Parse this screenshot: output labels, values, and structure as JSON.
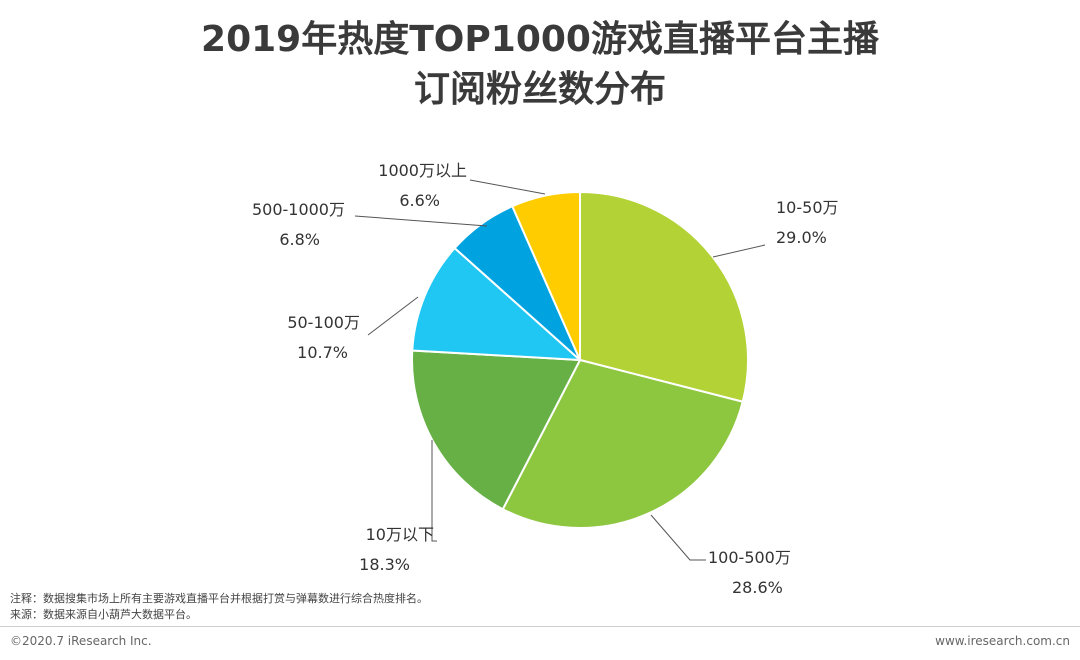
{
  "header": {
    "title_line1": "2019年热度TOP1000游戏直播平台主播",
    "title_line2": "订阅粉丝数分布"
  },
  "chart_data": {
    "type": "pie",
    "title": "2019年热度TOP1000游戏直播平台主播订阅粉丝数分布",
    "start_angle_deg": 0,
    "direction": "clockwise",
    "slices": [
      {
        "label": "10-50万",
        "value": 29.0,
        "display": "29.0%",
        "color": "#b2d235"
      },
      {
        "label": "100-500万",
        "value": 28.6,
        "display": "28.6%",
        "color": "#8dc63f"
      },
      {
        "label": "10万以下",
        "value": 18.3,
        "display": "18.3%",
        "color": "#66b046"
      },
      {
        "label": "50-100万",
        "value": 10.7,
        "display": "10.7%",
        "color": "#1fc7f2"
      },
      {
        "label": "500-1000万",
        "value": 6.8,
        "display": "6.8%",
        "color": "#00a3e0"
      },
      {
        "label": "1000万以上",
        "value": 6.6,
        "display": "6.6%",
        "color": "#ffcc00"
      }
    ]
  },
  "footer": {
    "note": "注释：数据搜集市场上所有主要游戏直播平台并根据打赏与弹幕数进行综合热度排名。",
    "source": "来源：数据来源自小葫芦大数据平台。",
    "copyright": "©2020.7 iResearch Inc.",
    "website": "www.iresearch.com.cn"
  }
}
